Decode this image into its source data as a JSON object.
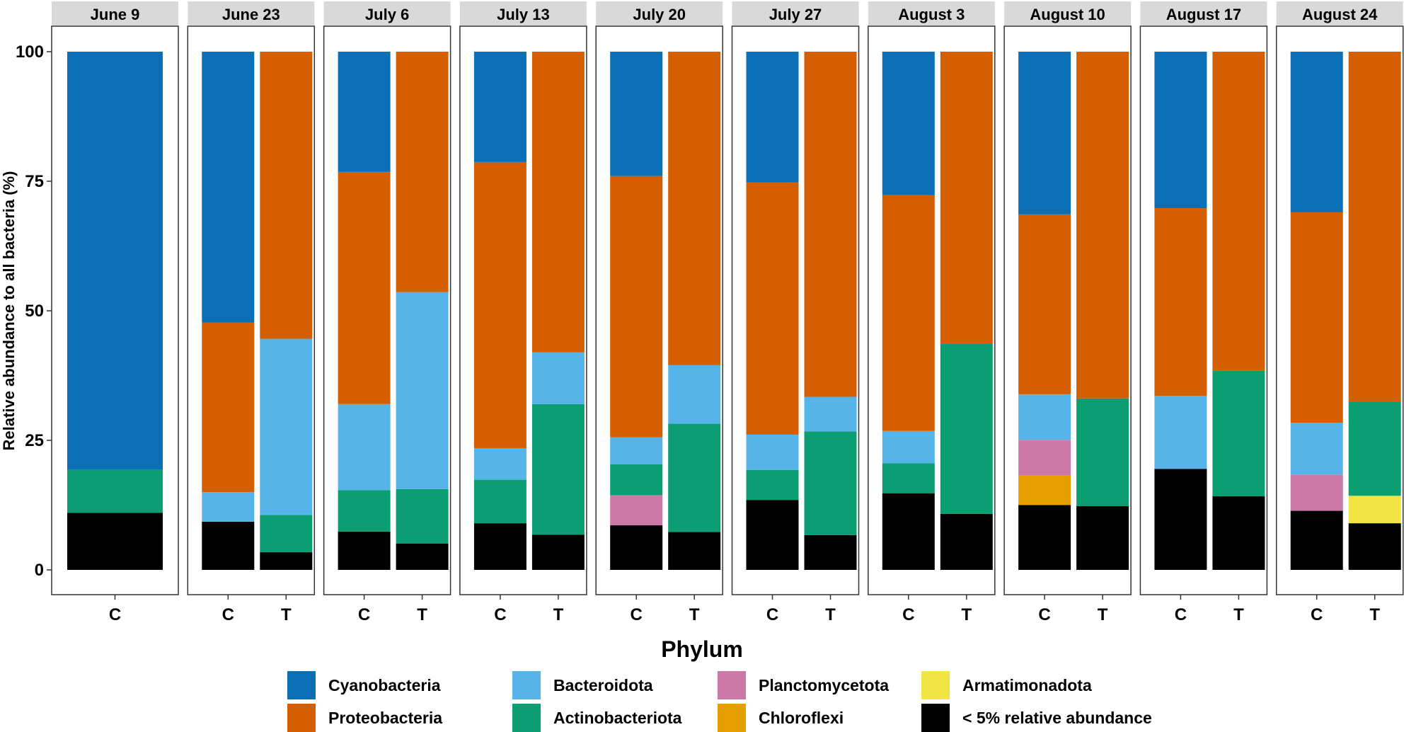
{
  "chart_data": {
    "type": "bar",
    "stacked": true,
    "ylabel": "Relative abundance to all bacteria (%)",
    "ylim": [
      0,
      100
    ],
    "yticks": [
      0,
      25,
      50,
      75,
      100
    ],
    "legend_title": "Phylum",
    "legend_position": "bottom",
    "stack_order": [
      "< 5% relative abundance",
      "Armatimonadota",
      "Chloroflexi",
      "Planctomycetota",
      "Actinobacteriota",
      "Bacteroidota",
      "Proteobacteria",
      "Cyanobacteria"
    ],
    "legend": [
      {
        "name": "Cyanobacteria",
        "color": "#0A6FB4"
      },
      {
        "name": "Proteobacteria",
        "color": "#D55E00"
      },
      {
        "name": "Bacteroidota",
        "color": "#56B4E9"
      },
      {
        "name": "Actinobacteriota",
        "color": "#0B9E73"
      },
      {
        "name": "Planctomycetota",
        "color": "#CC79A7"
      },
      {
        "name": "Chloroflexi",
        "color": "#E69F00"
      },
      {
        "name": "Armatimonadota",
        "color": "#F0E442"
      },
      {
        "name": "< 5% relative abundance",
        "color": "#000000"
      }
    ],
    "facets": [
      {
        "date": "June 9",
        "bars": [
          {
            "category": "C",
            "values": {
              "< 5% relative abundance": 11,
              "Actinobacteriota": 8.3,
              "Cyanobacteria": 80.7
            }
          }
        ]
      },
      {
        "date": "June 23",
        "bars": [
          {
            "category": "C",
            "values": {
              "< 5% relative abundance": 9.3,
              "Bacteroidota": 5.7,
              "Proteobacteria": 32.7,
              "Cyanobacteria": 52.3
            }
          },
          {
            "category": "T",
            "values": {
              "< 5% relative abundance": 3.4,
              "Actinobacteriota": 7.2,
              "Bacteroidota": 34,
              "Proteobacteria": 55.4
            }
          }
        ]
      },
      {
        "date": "July 6",
        "bars": [
          {
            "category": "C",
            "values": {
              "< 5% relative abundance": 7.4,
              "Actinobacteriota": 8,
              "Bacteroidota": 16.6,
              "Proteobacteria": 44.8,
              "Cyanobacteria": 23.2
            }
          },
          {
            "category": "T",
            "values": {
              "< 5% relative abundance": 5.1,
              "Actinobacteriota": 10.5,
              "Bacteroidota": 38,
              "Proteobacteria": 46.4
            }
          }
        ]
      },
      {
        "date": "July 13",
        "bars": [
          {
            "category": "C",
            "values": {
              "< 5% relative abundance": 9,
              "Actinobacteriota": 8.4,
              "Bacteroidota": 6.1,
              "Proteobacteria": 55.2,
              "Cyanobacteria": 21.3
            }
          },
          {
            "category": "T",
            "values": {
              "< 5% relative abundance": 6.8,
              "Actinobacteriota": 25.2,
              "Bacteroidota": 10,
              "Proteobacteria": 58
            }
          }
        ]
      },
      {
        "date": "July 20",
        "bars": [
          {
            "category": "C",
            "values": {
              "< 5% relative abundance": 8.6,
              "Planctomycetota": 5.8,
              "Actinobacteriota": 6,
              "Bacteroidota": 5.2,
              "Proteobacteria": 50.4,
              "Cyanobacteria": 24
            }
          },
          {
            "category": "T",
            "values": {
              "< 5% relative abundance": 7.3,
              "Actinobacteriota": 20.9,
              "Bacteroidota": 11.3,
              "Proteobacteria": 60.5
            }
          }
        ]
      },
      {
        "date": "July 27",
        "bars": [
          {
            "category": "C",
            "values": {
              "< 5% relative abundance": 13.5,
              "Actinobacteriota": 5.8,
              "Bacteroidota": 6.8,
              "Proteobacteria": 48.7,
              "Cyanobacteria": 25.2
            }
          },
          {
            "category": "T",
            "values": {
              "< 5% relative abundance": 6.7,
              "Actinobacteriota": 20,
              "Bacteroidota": 6.7,
              "Proteobacteria": 66.6
            }
          }
        ]
      },
      {
        "date": "August 3",
        "bars": [
          {
            "category": "C",
            "values": {
              "< 5% relative abundance": 14.8,
              "Actinobacteriota": 5.8,
              "Bacteroidota": 6.2,
              "Proteobacteria": 45.5,
              "Cyanobacteria": 27.7
            }
          },
          {
            "category": "T",
            "values": {
              "< 5% relative abundance": 10.8,
              "Actinobacteriota": 32.9,
              "Proteobacteria": 56.3
            }
          }
        ]
      },
      {
        "date": "August 10",
        "bars": [
          {
            "category": "C",
            "values": {
              "< 5% relative abundance": 12.5,
              "Chloroflexi": 5.7,
              "Planctomycetota": 6.9,
              "Bacteroidota": 8.8,
              "Proteobacteria": 34.7,
              "Cyanobacteria": 31.4
            }
          },
          {
            "category": "T",
            "values": {
              "< 5% relative abundance": 12.3,
              "Actinobacteriota": 20.8,
              "Proteobacteria": 66.9
            }
          }
        ]
      },
      {
        "date": "August 17",
        "bars": [
          {
            "category": "C",
            "values": {
              "< 5% relative abundance": 19.5,
              "Bacteroidota": 14.1,
              "Proteobacteria": 36.2,
              "Cyanobacteria": 30.2
            }
          },
          {
            "category": "T",
            "values": {
              "< 5% relative abundance": 14.2,
              "Actinobacteriota": 24.2,
              "Proteobacteria": 61.6
            }
          }
        ]
      },
      {
        "date": "August 24",
        "bars": [
          {
            "category": "C",
            "values": {
              "< 5% relative abundance": 11.4,
              "Planctomycetota": 7,
              "Bacteroidota": 10,
              "Proteobacteria": 40.6,
              "Cyanobacteria": 31
            }
          },
          {
            "category": "T",
            "values": {
              "< 5% relative abundance": 9,
              "Armatimonadota": 5.3,
              "Actinobacteriota": 18.2,
              "Proteobacteria": 67.5
            }
          }
        ]
      }
    ]
  }
}
